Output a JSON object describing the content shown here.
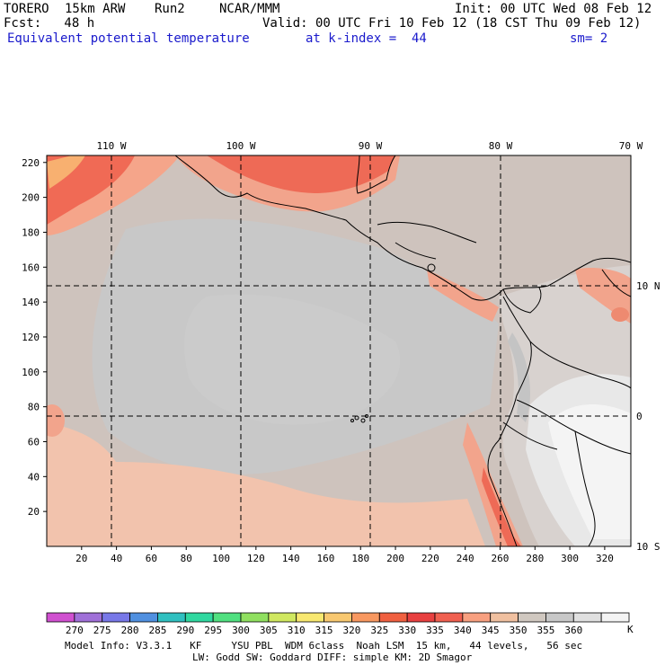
{
  "header": {
    "model": "TORERO",
    "resolution": "15km ARW",
    "run": "Run2",
    "institution": "NCAR/MMM",
    "init": "Init: 00 UTC Wed 08 Feb 12",
    "forecast": "Fcst:   48 h",
    "valid": "Valid: 00 UTC Fri 10 Feb 12 (18 CST Thu 09 Feb 12)",
    "field": "Equivalent potential temperature",
    "level": "at k-index =  44",
    "smoothing": "sm= 2"
  },
  "map": {
    "lon_labels": [
      "110 W",
      "100 W",
      "90 W",
      "80 W",
      "70 W"
    ],
    "lat_labels": [
      "10 N",
      "0",
      "10 S"
    ],
    "x_ticks": [
      "20",
      "40",
      "60",
      "80",
      "100",
      "120",
      "140",
      "160",
      "180",
      "200",
      "220",
      "240",
      "260",
      "280",
      "300",
      "320"
    ],
    "y_ticks": [
      "20",
      "40",
      "60",
      "80",
      "100",
      "120",
      "140",
      "160",
      "180",
      "200",
      "220"
    ]
  },
  "colorbar": {
    "labels": [
      "270",
      "275",
      "280",
      "285",
      "290",
      "295",
      "300",
      "305",
      "310",
      "315",
      "320",
      "325",
      "330",
      "335",
      "340",
      "345",
      "350",
      "355",
      "360"
    ],
    "unit": "K",
    "colors": [
      "#d050d0",
      "#a070d8",
      "#7878e8",
      "#5090e0",
      "#30c0c0",
      "#30d8a0",
      "#50e080",
      "#90e060",
      "#d0e860",
      "#f8e870",
      "#f8c870",
      "#f89860",
      "#f06040",
      "#e84040",
      "#f06050",
      "#f8a080",
      "#f0c0a0",
      "#d0c8c0",
      "#c8c8c8",
      "#e0e0e0",
      "#f4f4f4"
    ]
  },
  "footer": {
    "line1": "Model Info: V3.3.1   KF     YSU PBL  WDM 6class  Noah LSM  15 km,   44 levels,   56 sec",
    "line2": "LW: Godd SW: Goddard DIFF: simple KM: 2D Smagor"
  }
}
